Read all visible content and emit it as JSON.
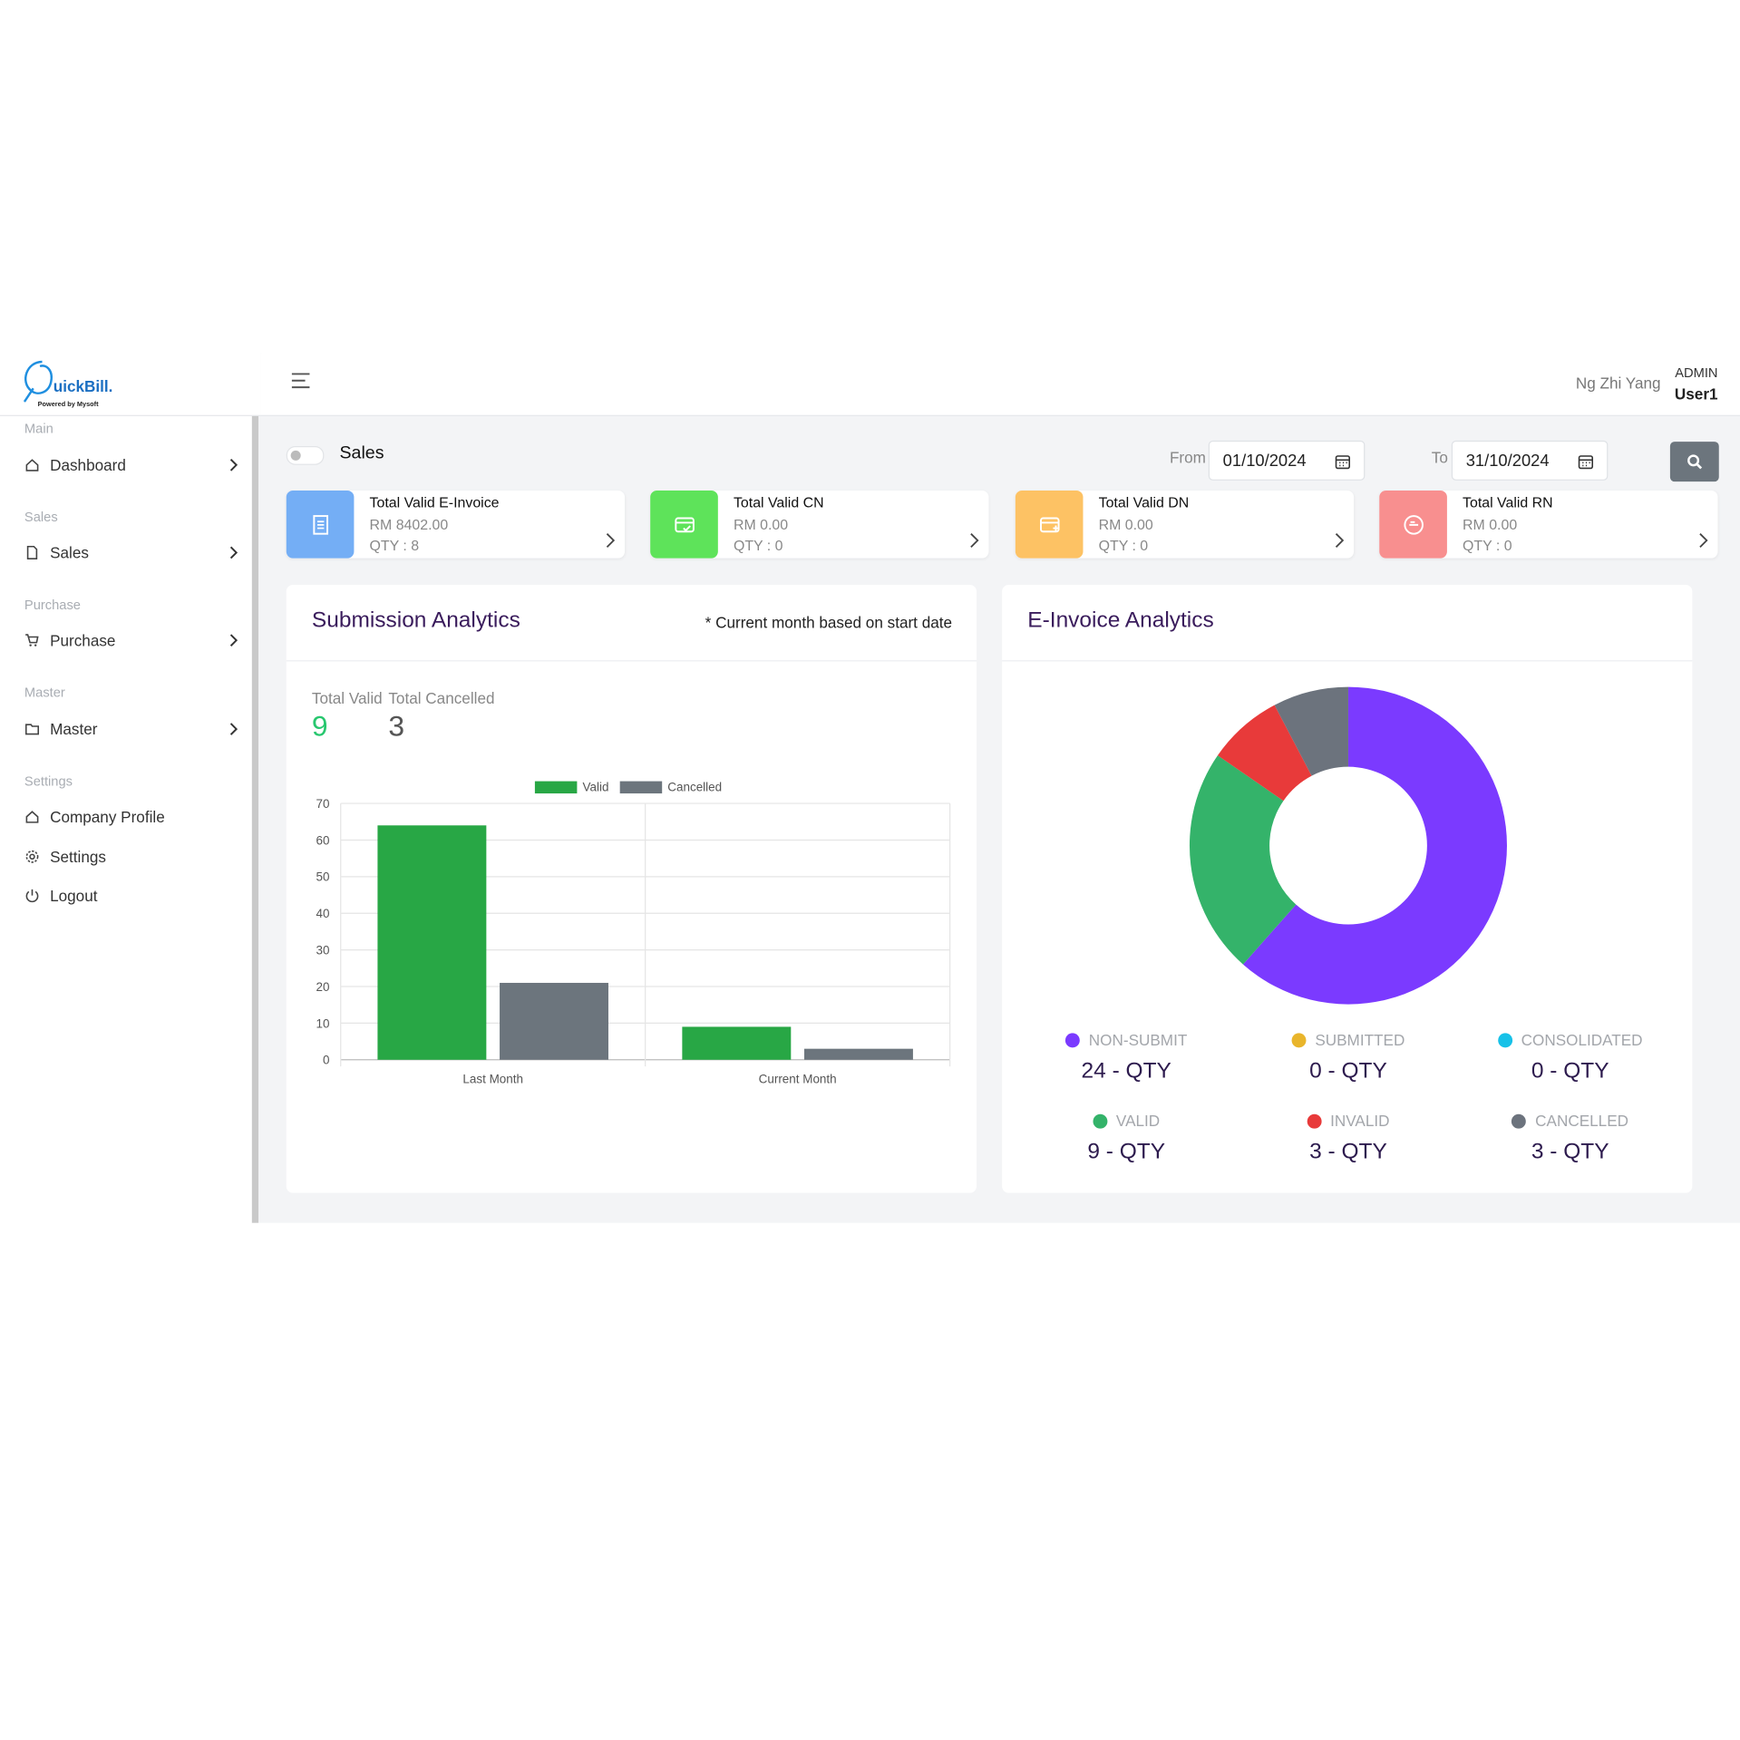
{
  "header": {
    "logo": "uickBill.",
    "logo_sub": "Powered by Mysoft",
    "user_name": "Ng Zhi Yang",
    "role": "ADMIN",
    "user": "User1"
  },
  "sidebar": [
    {
      "title": "Main",
      "items": [
        "Dashboard"
      ]
    },
    {
      "title": "Sales",
      "items": [
        "Sales"
      ]
    },
    {
      "title": "Purchase",
      "items": [
        "Purchase"
      ]
    },
    {
      "title": "Master",
      "items": [
        "Master"
      ]
    },
    {
      "title": "Settings",
      "items": [
        "Company Profile",
        "Settings",
        "Logout"
      ]
    }
  ],
  "toolbar": {
    "mode": "Sales",
    "from_label": "From",
    "from_date": "01/10/2024",
    "to_label": "To",
    "to_date": "31/10/2024"
  },
  "cards": [
    {
      "title": "Total Valid E-Invoice",
      "amount": "RM 8402.00",
      "qty": "QTY : 8",
      "color": "#74aef5"
    },
    {
      "title": "Total Valid CN",
      "amount": "RM 0.00",
      "qty": "QTY : 0",
      "color": "#5ee35a"
    },
    {
      "title": "Total Valid DN",
      "amount": "RM 0.00",
      "qty": "QTY : 0",
      "color": "#fdc264"
    },
    {
      "title": "Total Valid RN",
      "amount": "RM 0.00",
      "qty": "QTY : 0",
      "color": "#f88f8f"
    }
  ],
  "submission": {
    "title": "Submission Analytics",
    "note": "* Current month based on start date",
    "totals": [
      {
        "label": "Total Valid",
        "value": 9
      },
      {
        "label": "Total Cancelled",
        "value": 3
      }
    ]
  },
  "einvoice": {
    "title": "E-Invoice Analytics"
  },
  "chart_data": [
    {
      "type": "bar",
      "categories": [
        "Last Month",
        "Current Month"
      ],
      "series": [
        {
          "name": "Valid",
          "color": "#28a745",
          "values": [
            64,
            9
          ]
        },
        {
          "name": "Cancelled",
          "color": "#6c757d",
          "values": [
            21,
            3
          ]
        }
      ],
      "ylim": [
        0,
        70
      ],
      "yticks": [
        0,
        10,
        20,
        30,
        40,
        50,
        60,
        70
      ],
      "grid": true
    },
    {
      "type": "doughnut",
      "categories": [
        "NON-SUBMIT",
        "SUBMITTED",
        "CONSOLIDATED",
        "VALID",
        "INVALID",
        "CANCELLED"
      ],
      "values": [
        24,
        0,
        0,
        9,
        3,
        3
      ],
      "value_labels": [
        "24 - QTY",
        "0 - QTY",
        "0 - QTY",
        "9 - QTY",
        "3 - QTY",
        "3 - QTY"
      ],
      "colors": [
        "#7b3aff",
        "#e9b52b",
        "#17c1e8",
        "#34b36a",
        "#e83a3a",
        "#6c737d"
      ]
    }
  ]
}
